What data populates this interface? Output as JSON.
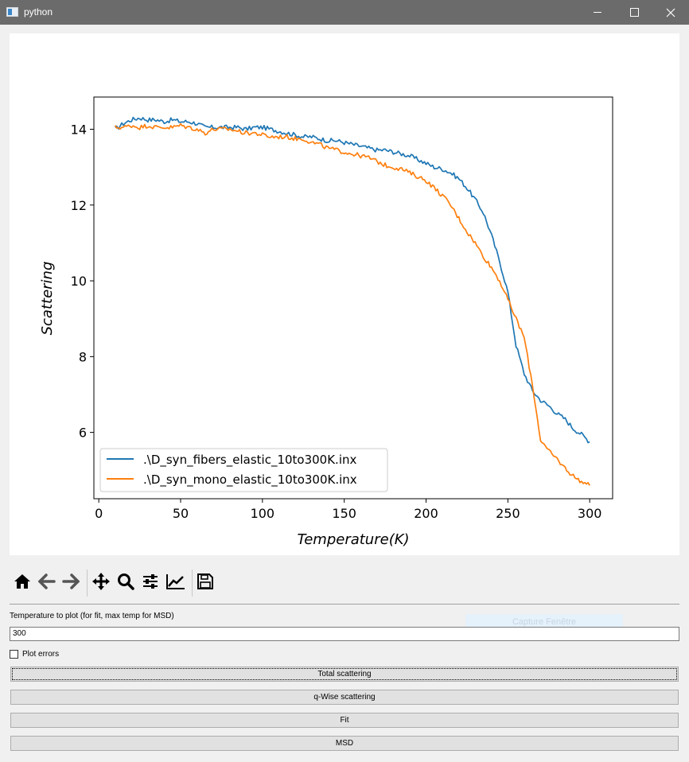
{
  "window": {
    "title": "python"
  },
  "toolbar": {
    "tools": [
      "home-icon",
      "back-arrow-icon",
      "forward-arrow-icon",
      "pan-move-icon",
      "zoom-magnifier-icon",
      "subplots-config-icon",
      "edit-axes-curves-icon",
      "save-floppy-icon"
    ]
  },
  "controls": {
    "temperature_label": "Temperature to plot (for fit, max temp for MSD)",
    "temperature_value": "300",
    "plot_errors_label": "Plot errors",
    "plot_errors_checked": false,
    "ghost_button_label": "Capture Fenêtre",
    "buttons": [
      "Total scattering",
      "q-Wise scattering",
      "Fit",
      "MSD"
    ]
  },
  "chart_data": {
    "type": "line",
    "xlabel": "Temperature(K)",
    "ylabel": "Scattering",
    "xlim": [
      -3,
      314
    ],
    "ylim": [
      4.25,
      14.85
    ],
    "xticks": [
      0,
      50,
      100,
      150,
      200,
      250,
      300
    ],
    "yticks": [
      6,
      8,
      10,
      12,
      14
    ],
    "legend_position": "lower-left",
    "grid": false,
    "series": [
      {
        "name": ".\\D_syn_fibers_elastic_10to300K.inx",
        "color": "#1f77b4",
        "x": [
          10,
          15,
          20,
          25,
          30,
          35,
          40,
          45,
          50,
          55,
          60,
          65,
          70,
          75,
          80,
          85,
          90,
          95,
          100,
          105,
          110,
          115,
          120,
          125,
          130,
          135,
          140,
          145,
          150,
          155,
          160,
          165,
          170,
          175,
          180,
          185,
          190,
          195,
          200,
          205,
          210,
          215,
          220,
          225,
          230,
          235,
          240,
          245,
          250,
          255,
          260,
          265,
          270,
          275,
          280,
          285,
          290,
          295,
          300
        ],
        "y": [
          14.0,
          14.15,
          14.25,
          14.3,
          14.25,
          14.25,
          14.2,
          14.25,
          14.2,
          14.2,
          14.15,
          14.05,
          14.05,
          14.05,
          14.05,
          14.05,
          14.0,
          14.05,
          14.05,
          14.0,
          13.95,
          13.9,
          13.85,
          13.8,
          13.8,
          13.75,
          13.7,
          13.7,
          13.65,
          13.6,
          13.55,
          13.5,
          13.45,
          13.45,
          13.4,
          13.35,
          13.3,
          13.2,
          13.1,
          13.0,
          12.95,
          12.85,
          12.7,
          12.45,
          12.15,
          11.8,
          11.2,
          10.5,
          9.7,
          8.3,
          7.55,
          7.1,
          6.85,
          6.7,
          6.5,
          6.35,
          6.1,
          5.95,
          5.75
        ]
      },
      {
        "name": ".\\D_syn_mono_elastic_10to300K.inx",
        "color": "#ff7f0e",
        "x": [
          10,
          15,
          20,
          25,
          30,
          35,
          40,
          45,
          50,
          55,
          60,
          65,
          70,
          75,
          80,
          85,
          90,
          95,
          100,
          105,
          110,
          115,
          120,
          125,
          130,
          135,
          140,
          145,
          150,
          155,
          160,
          165,
          170,
          175,
          180,
          185,
          190,
          195,
          200,
          205,
          210,
          215,
          220,
          225,
          230,
          235,
          240,
          245,
          250,
          255,
          260,
          265,
          270,
          275,
          280,
          285,
          290,
          295,
          300
        ],
        "y": [
          14.05,
          14.05,
          14.1,
          14.05,
          14.1,
          14.05,
          14.05,
          14.05,
          14.1,
          14.05,
          14.0,
          13.9,
          14.0,
          14.0,
          14.0,
          13.95,
          13.9,
          13.9,
          13.85,
          13.8,
          13.8,
          13.8,
          13.75,
          13.75,
          13.65,
          13.6,
          13.5,
          13.45,
          13.4,
          13.35,
          13.3,
          13.25,
          13.15,
          13.05,
          13.0,
          12.95,
          12.85,
          12.75,
          12.65,
          12.45,
          12.25,
          12.0,
          11.65,
          11.3,
          11.0,
          10.65,
          10.35,
          10.0,
          9.5,
          9.0,
          8.5,
          7.25,
          5.8,
          5.5,
          5.3,
          5.05,
          4.85,
          4.7,
          4.6
        ]
      }
    ]
  }
}
